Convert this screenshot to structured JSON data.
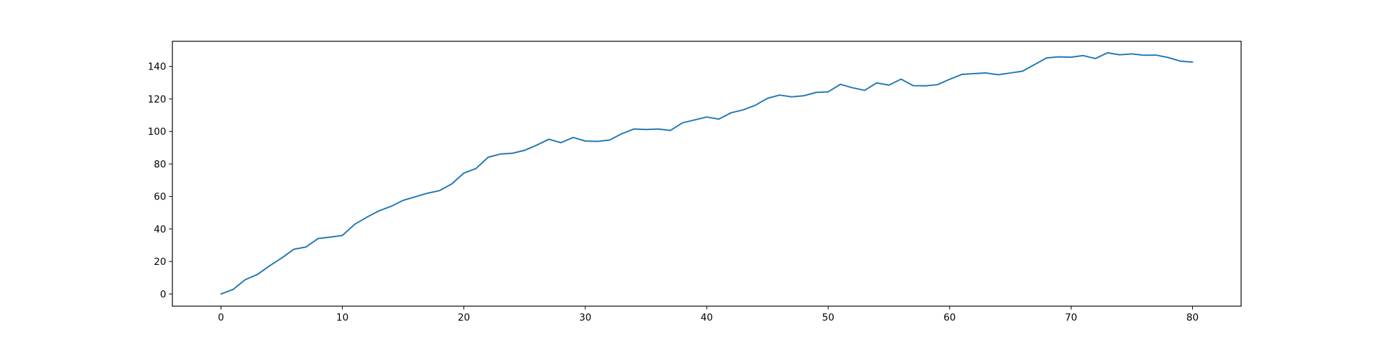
{
  "chart_data": {
    "type": "line",
    "title": "",
    "xlabel": "",
    "ylabel": "",
    "xlim": [
      -4,
      84
    ],
    "ylim": [
      -7.5,
      155.5
    ],
    "x_ticks": [
      0,
      10,
      20,
      30,
      40,
      50,
      60,
      70,
      80
    ],
    "y_ticks": [
      0,
      20,
      40,
      60,
      80,
      100,
      120,
      140
    ],
    "grid": false,
    "legend": "none",
    "series": [
      {
        "color": "#1f77b4",
        "x": [
          0,
          1,
          2,
          3,
          4,
          5,
          6,
          7,
          8,
          9,
          10,
          11,
          12,
          13,
          14,
          15,
          16,
          17,
          18,
          19,
          20,
          21,
          22,
          23,
          24,
          25,
          26,
          27,
          28,
          29,
          30,
          31,
          32,
          33,
          34,
          35,
          36,
          37,
          38,
          39,
          40,
          41,
          42,
          43,
          44,
          45,
          46,
          47,
          48,
          49,
          50,
          51,
          52,
          53,
          54,
          55,
          56,
          57,
          58,
          59,
          60,
          61,
          62,
          63,
          64,
          65,
          66,
          67,
          68,
          69,
          70,
          71,
          72,
          73,
          74,
          75,
          76,
          77,
          78,
          79,
          80
        ],
        "y": [
          0,
          2.8,
          8.8,
          12,
          17.3,
          22.1,
          27.5,
          28.9,
          34.1,
          35,
          36,
          42.8,
          47.2,
          51.1,
          53.9,
          57.6,
          59.8,
          62,
          63.6,
          67.7,
          74.4,
          77.2,
          84.1,
          86.1,
          86.6,
          88.4,
          91.6,
          95.2,
          93.1,
          96.3,
          94.1,
          93.9,
          94.7,
          98.6,
          101.5,
          101.2,
          101.5,
          100.6,
          105.3,
          107.1,
          108.9,
          107.6,
          111.5,
          113.3,
          116.1,
          120.4,
          122.4,
          121.3,
          122,
          124,
          124.4,
          129,
          126.9,
          125.3,
          129.9,
          128.5,
          132.2,
          128.2,
          128.1,
          128.8,
          132.1,
          135.1,
          135.6,
          136,
          134.9,
          136,
          137.1,
          141.2,
          145.3,
          145.9,
          145.7,
          146.7,
          144.9,
          148.4,
          147.2,
          147.7,
          146.9,
          147,
          145.5,
          143.3,
          142.7
        ]
      }
    ]
  }
}
